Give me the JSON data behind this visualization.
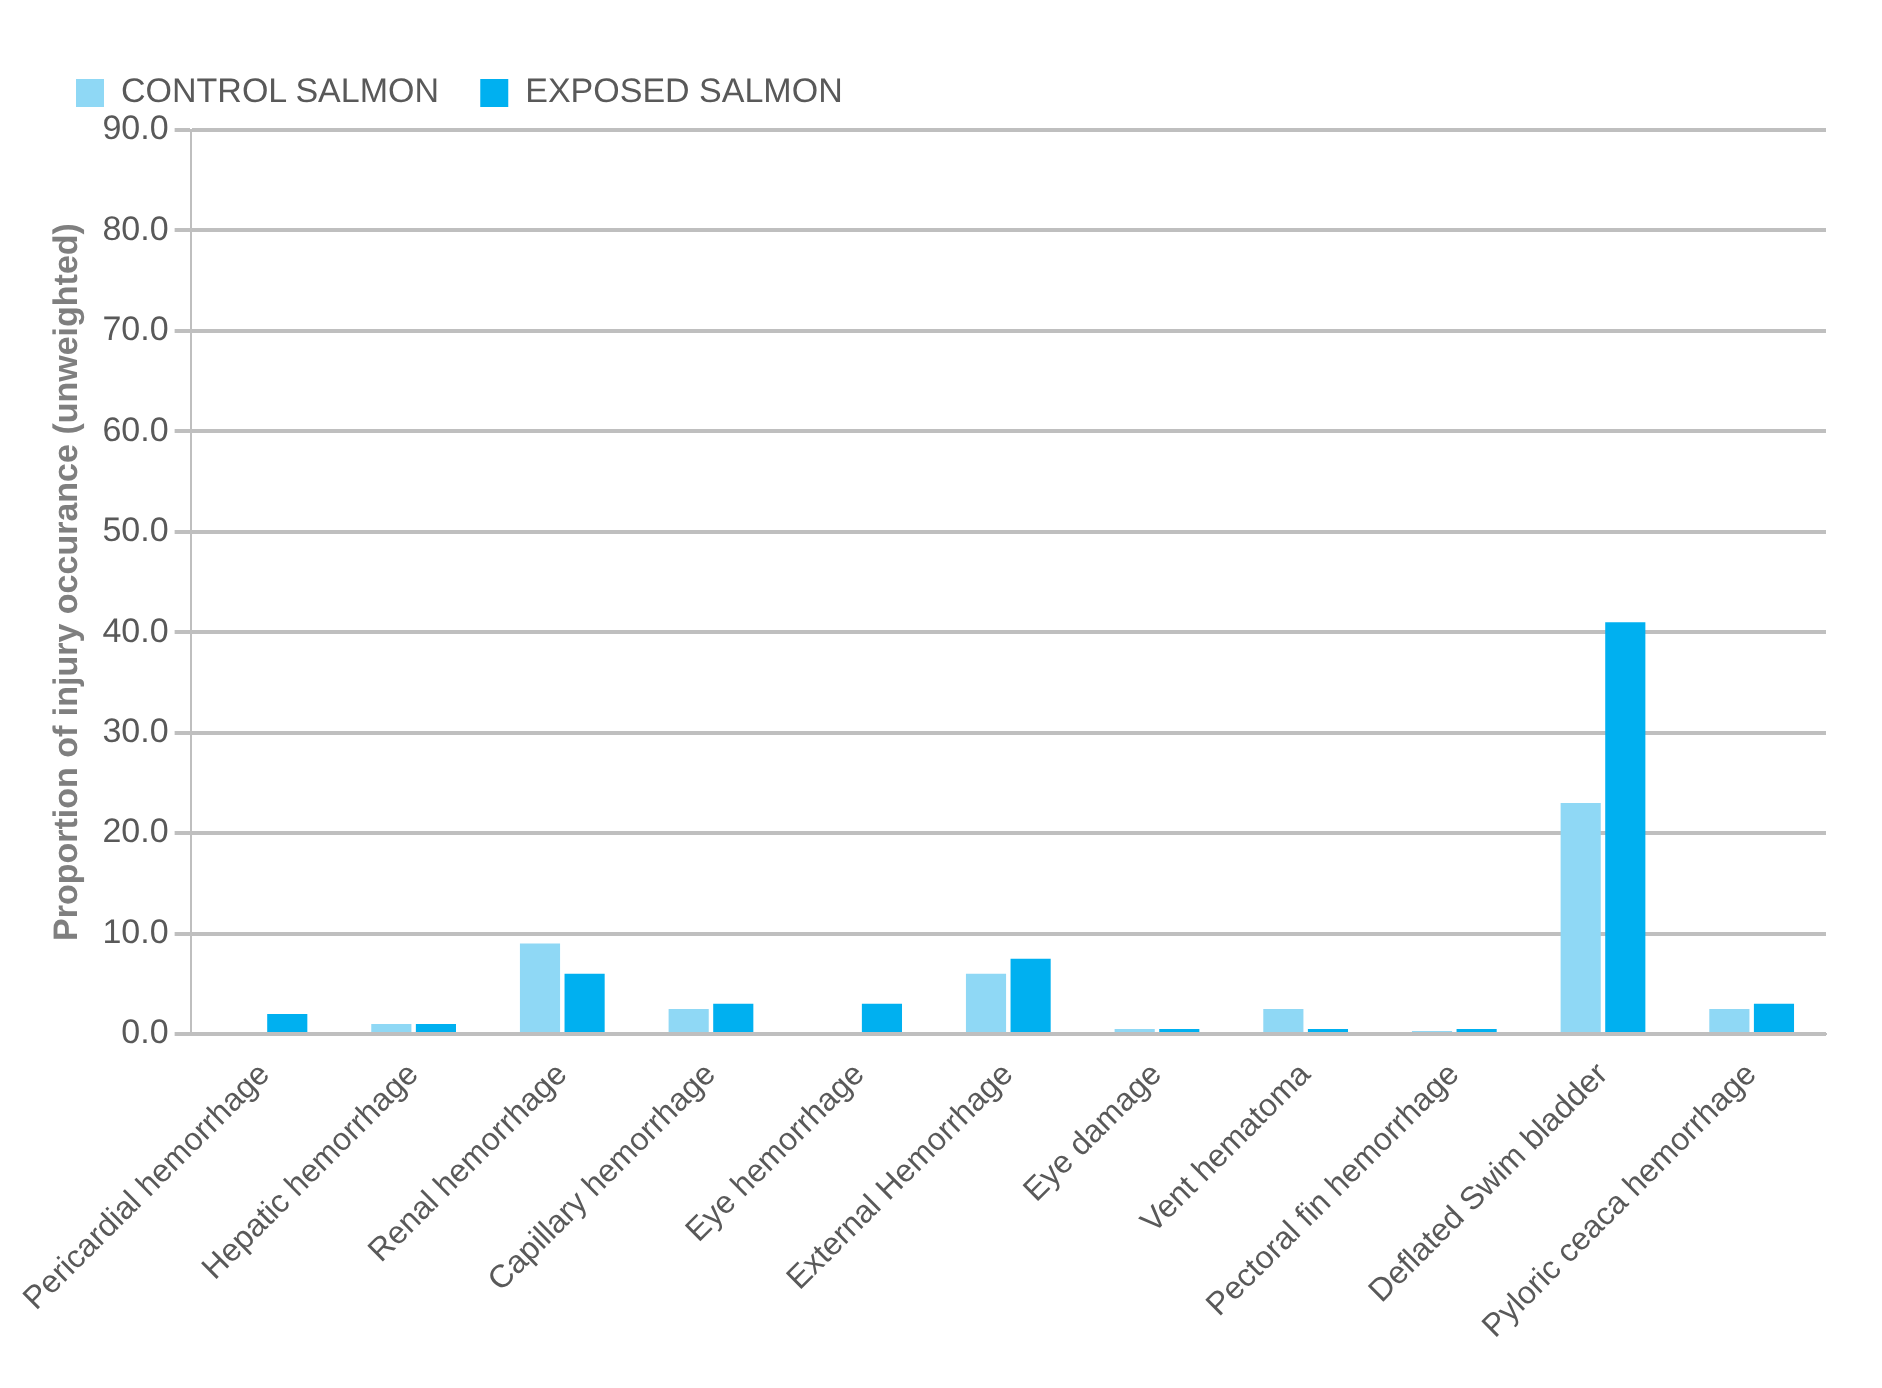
{
  "chart_data": {
    "type": "bar",
    "ylabel": "Proportion of injury occurance (unweighted)",
    "categories": [
      "Pericardial hemorrhage",
      "Hepatic hemorrhage",
      "Renal hemorrhage",
      "Capillary hemorrhage",
      "Eye hemorrhage",
      "External Hemorrhage",
      "Eye damage",
      "Vent hematoma",
      "Pectoral fin hemorrhage",
      "Deflated Swim bladder",
      "Pyloric ceaca hemorrhage"
    ],
    "series": [
      {
        "name": "CONTROL SALMON",
        "color": "#8fd8f5",
        "values": [
          0,
          1.0,
          9.0,
          2.5,
          0,
          6.0,
          0.5,
          2.5,
          0.3,
          23,
          2.5
        ]
      },
      {
        "name": "EXPOSED SALMON",
        "color": "#00b0f0",
        "values": [
          2.0,
          1.0,
          6.0,
          3.0,
          3.0,
          7.5,
          0.5,
          0.5,
          0.5,
          41,
          3.0
        ]
      }
    ],
    "ylim": [
      0,
      90
    ],
    "yticks": [
      {
        "value": 0,
        "label": "0.0"
      },
      {
        "value": 10,
        "label": "10.0"
      },
      {
        "value": 20,
        "label": "20.0"
      },
      {
        "value": 30,
        "label": "30.0"
      },
      {
        "value": 40,
        "label": "40.0"
      },
      {
        "value": 50,
        "label": "50.0"
      },
      {
        "value": 60,
        "label": "60.0"
      },
      {
        "value": 70,
        "label": "70.0"
      },
      {
        "value": 80,
        "label": "80.0"
      },
      {
        "value": 90,
        "label": "90.0"
      }
    ],
    "grid": "y",
    "legend": "top left"
  }
}
